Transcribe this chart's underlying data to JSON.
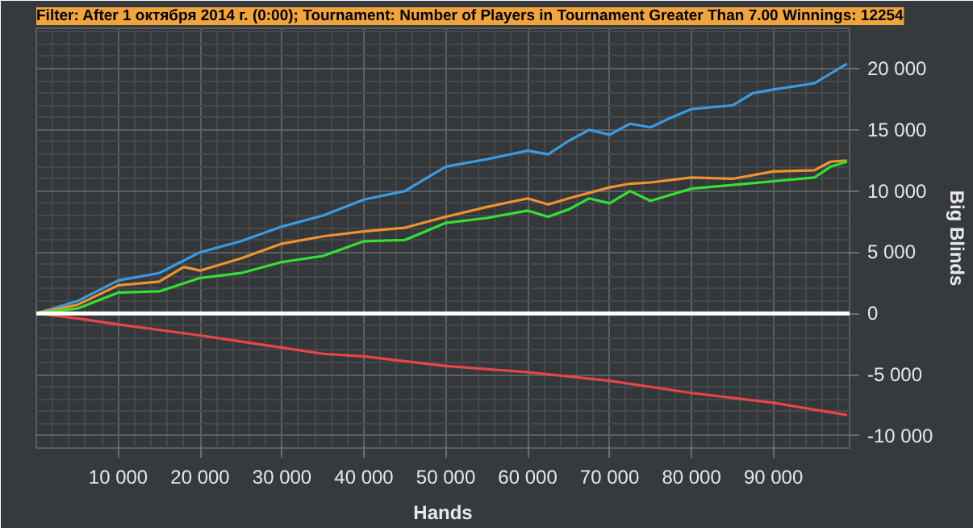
{
  "chart_data": {
    "type": "line",
    "title": "Filter: After 1 октября 2014 г. (0:00); Tournament: Number of Players in Tournament Greater Than 7.00 Winnings: 12254",
    "xlabel": "Hands",
    "ylabel": "Big Blinds",
    "xlim": [
      0,
      99300
    ],
    "ylim": [
      -11000,
      23300
    ],
    "xticks": [
      {
        "value": 10000,
        "label": "10 000"
      },
      {
        "value": 20000,
        "label": "20 000"
      },
      {
        "value": 30000,
        "label": "30 000"
      },
      {
        "value": 40000,
        "label": "40 000"
      },
      {
        "value": 50000,
        "label": "50 000"
      },
      {
        "value": 60000,
        "label": "60 000"
      },
      {
        "value": 70000,
        "label": "70 000"
      },
      {
        "value": 80000,
        "label": "80 000"
      },
      {
        "value": 90000,
        "label": "90 000"
      }
    ],
    "yticks": [
      {
        "value": -10000,
        "label": "-10 000"
      },
      {
        "value": -5000,
        "label": "-5 000"
      },
      0,
      {
        "value": 5000,
        "label": "5 000"
      },
      {
        "value": 10000,
        "label": "10 000"
      },
      {
        "value": 15000,
        "label": "15 000"
      },
      {
        "value": 20000,
        "label": "20 000"
      }
    ],
    "grid": true,
    "ref_lines": [
      {
        "axis": "y",
        "value": 0,
        "color": "#ffffff"
      }
    ],
    "series": [
      {
        "color": "#3a9be0",
        "x": [
          0,
          5000,
          10000,
          15000,
          20000,
          25000,
          30000,
          35000,
          40000,
          45000,
          50000,
          55000,
          60000,
          62500,
          65000,
          67500,
          70000,
          72500,
          75000,
          77500,
          80000,
          85000,
          87500,
          90000,
          95000,
          99000
        ],
        "values": [
          0,
          1000,
          2700,
          3300,
          5000,
          5900,
          7100,
          8000,
          9300,
          10000,
          12000,
          12600,
          13300,
          13000,
          14100,
          15000,
          14600,
          15500,
          15200,
          16000,
          16700,
          17000,
          18000,
          18300,
          18800,
          20400
        ]
      },
      {
        "color": "#f0922e",
        "x": [
          0,
          5000,
          10000,
          15000,
          18000,
          20000,
          25000,
          30000,
          35000,
          40000,
          45000,
          50000,
          55000,
          60000,
          62500,
          65000,
          70000,
          72500,
          75000,
          80000,
          85000,
          90000,
          95000,
          97000,
          99000
        ],
        "values": [
          0,
          700,
          2300,
          2600,
          3800,
          3500,
          4500,
          5700,
          6300,
          6700,
          7000,
          7900,
          8700,
          9400,
          8900,
          9400,
          10300,
          10600,
          10700,
          11100,
          11000,
          11600,
          11700,
          12400,
          12500
        ]
      },
      {
        "color": "#33e033",
        "x": [
          0,
          5000,
          10000,
          15000,
          20000,
          25000,
          30000,
          35000,
          40000,
          45000,
          50000,
          55000,
          60000,
          62500,
          65000,
          67500,
          70000,
          72500,
          75000,
          80000,
          85000,
          90000,
          95000,
          97000,
          99000
        ],
        "values": [
          0,
          400,
          1700,
          1800,
          2900,
          3300,
          4200,
          4700,
          5900,
          6000,
          7400,
          7800,
          8400,
          7900,
          8500,
          9400,
          9000,
          10000,
          9200,
          10200,
          10500,
          10800,
          11100,
          12000,
          12400
        ]
      },
      {
        "color": "#e84545",
        "x": [
          0,
          5000,
          10000,
          20000,
          30000,
          35000,
          40000,
          50000,
          60000,
          70000,
          80000,
          90000,
          99000
        ],
        "values": [
          0,
          -400,
          -900,
          -1800,
          -2800,
          -3300,
          -3500,
          -4300,
          -4800,
          -5500,
          -6500,
          -7300,
          -8300
        ]
      }
    ]
  }
}
